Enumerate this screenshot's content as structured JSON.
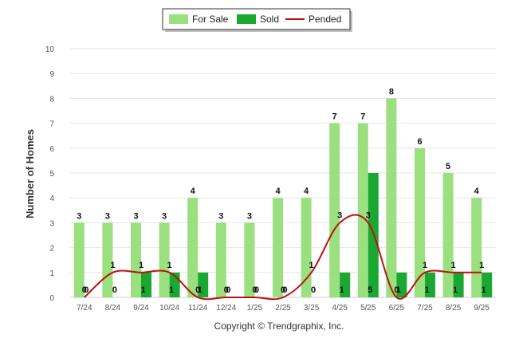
{
  "chart_data": {
    "type": "bar",
    "ylabel": "Number of Homes",
    "ylim": [
      0,
      10
    ],
    "yticks": [
      0,
      1,
      2,
      3,
      4,
      5,
      6,
      7,
      8,
      9,
      10
    ],
    "categories": [
      "7/24",
      "8/24",
      "9/24",
      "10/24",
      "11/24",
      "12/24",
      "1/25",
      "2/25",
      "3/25",
      "4/25",
      "5/25",
      "6/25",
      "7/25",
      "8/25",
      "9/25"
    ],
    "series": [
      {
        "name": "For Sale",
        "kind": "bar",
        "color": "#9be07f",
        "values": [
          3,
          3,
          3,
          3,
          4,
          3,
          3,
          4,
          4,
          7,
          7,
          8,
          6,
          5,
          4
        ]
      },
      {
        "name": "Sold",
        "kind": "bar",
        "color": "#1aa832",
        "values": [
          0,
          0,
          1,
          1,
          1,
          0,
          0,
          0,
          0,
          1,
          5,
          1,
          1,
          1,
          1
        ]
      },
      {
        "name": "Pended",
        "kind": "line",
        "color": "#bb1111",
        "values": [
          0,
          1,
          1,
          1,
          0,
          0,
          0,
          0,
          1,
          3,
          3,
          0,
          1,
          1,
          1
        ]
      }
    ],
    "grid": true,
    "legend_position": "top-center",
    "copyright": "Copyright © Trendgraphix, Inc."
  }
}
